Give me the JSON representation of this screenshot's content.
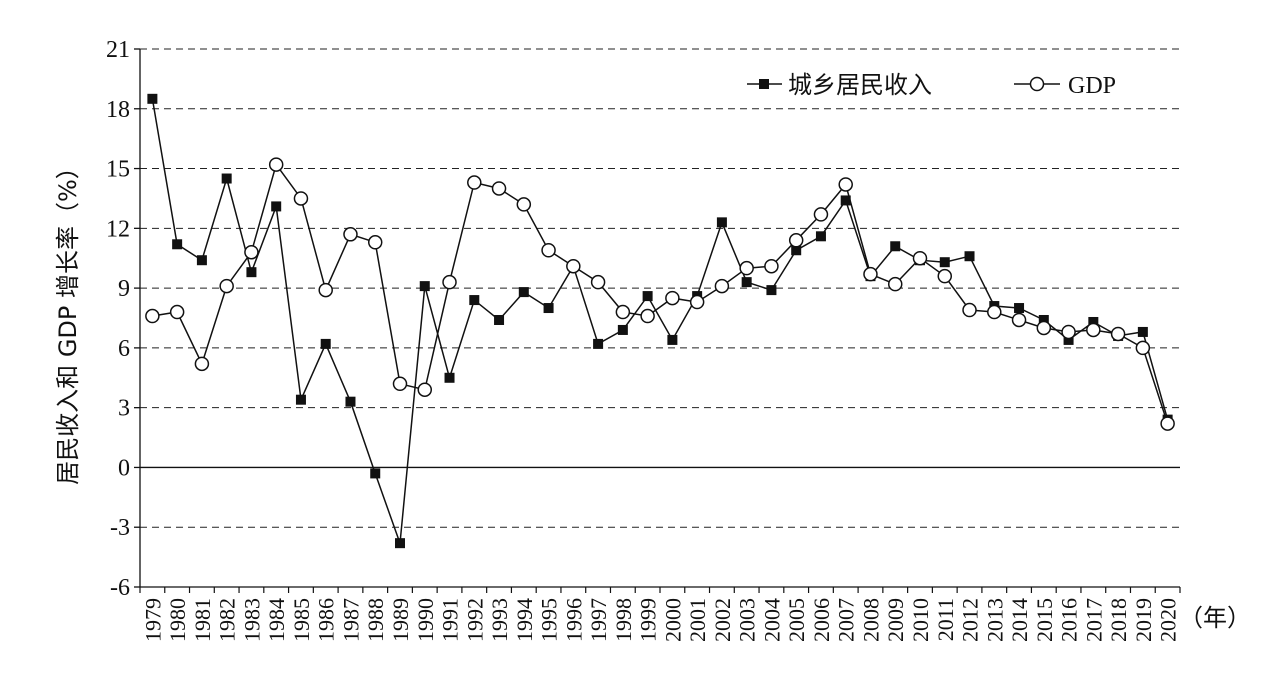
{
  "chart_data": {
    "type": "line",
    "ylabel": "居民收入和 GDP 增长率（%）",
    "xunit": "（年）",
    "ylim": [
      -6,
      21
    ],
    "yticks": [
      21,
      18,
      15,
      12,
      9,
      6,
      3,
      0,
      -3,
      -6
    ],
    "grid": "horizontal dashed",
    "legend_position": "top-right",
    "categories": [
      "1979",
      "1980",
      "1981",
      "1982",
      "1983",
      "1984",
      "1985",
      "1986",
      "1987",
      "1988",
      "1989",
      "1990",
      "1991",
      "1992",
      "1993",
      "1994",
      "1995",
      "1996",
      "1997",
      "1998",
      "1999",
      "2000",
      "2001",
      "2002",
      "2003",
      "2004",
      "2005",
      "2006",
      "2007",
      "2008",
      "2009",
      "2010",
      "2011",
      "2012",
      "2013",
      "2014",
      "2015",
      "2016",
      "2017",
      "2018",
      "2019",
      "2020"
    ],
    "series": [
      {
        "name": "城乡居民收入",
        "marker": "filled-square",
        "values": [
          18.5,
          11.2,
          10.4,
          14.5,
          9.8,
          13.1,
          3.4,
          6.2,
          3.3,
          -0.3,
          -3.8,
          9.1,
          4.5,
          8.4,
          7.4,
          8.8,
          8.0,
          10.1,
          6.2,
          6.9,
          8.6,
          6.4,
          8.6,
          12.3,
          9.3,
          8.9,
          10.9,
          11.6,
          13.4,
          9.6,
          11.1,
          10.4,
          10.3,
          10.6,
          8.1,
          8.0,
          7.4,
          6.4,
          7.3,
          6.6,
          6.8,
          2.4
        ]
      },
      {
        "name": "GDP",
        "marker": "open-circle",
        "values": [
          7.6,
          7.8,
          5.2,
          9.1,
          10.8,
          15.2,
          13.5,
          8.9,
          11.7,
          11.3,
          4.2,
          3.9,
          9.3,
          14.3,
          14.0,
          13.2,
          10.9,
          10.1,
          9.3,
          7.8,
          7.6,
          8.5,
          8.3,
          9.1,
          10.0,
          10.1,
          11.4,
          12.7,
          14.2,
          9.7,
          9.2,
          10.5,
          9.6,
          7.9,
          7.8,
          7.4,
          7.0,
          6.8,
          6.9,
          6.7,
          6.0,
          2.2
        ]
      }
    ]
  }
}
